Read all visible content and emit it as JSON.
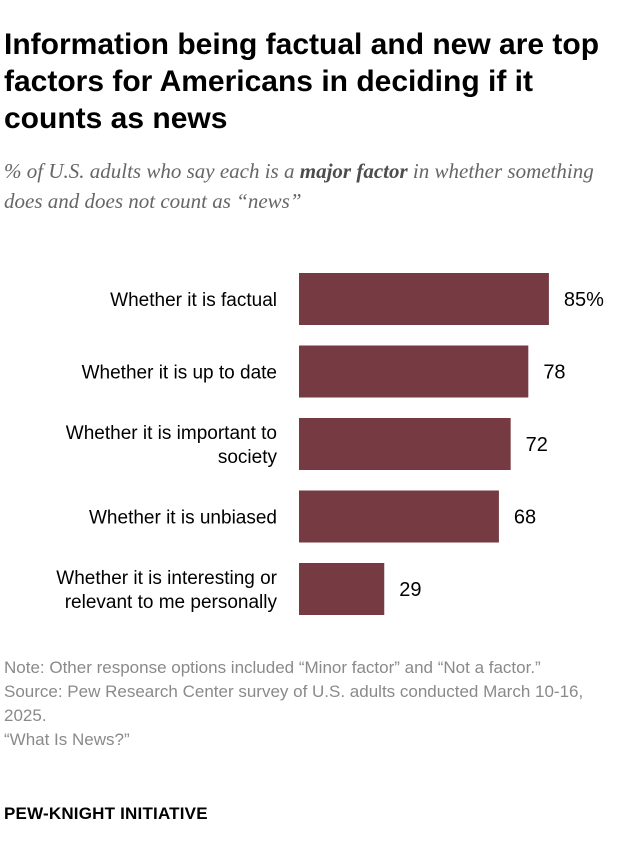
{
  "title": "Information being factual and new are top factors for Americans in deciding if it counts as news",
  "subtitle": {
    "before": "% of U.S. adults who say each is a ",
    "emphasis": "major factor",
    "after": " in whether something does and does not count as “news”"
  },
  "chart_data": {
    "type": "bar",
    "orientation": "horizontal",
    "categories": [
      [
        "Whether it is factual"
      ],
      [
        "Whether it is up to date"
      ],
      [
        "Whether it is important to",
        "society"
      ],
      [
        "Whether it is unbiased"
      ],
      [
        "Whether it is interesting or",
        "relevant to me personally"
      ]
    ],
    "values": [
      85,
      78,
      72,
      68,
      29
    ],
    "value_labels": [
      "85%",
      "78",
      "72",
      "68",
      "29"
    ],
    "bar_color": "#763a42",
    "xlim": [
      0,
      100
    ],
    "grid": false
  },
  "notes": {
    "note": "Note: Other response options included “Minor factor” and “Not a factor.”",
    "source": "Source: Pew Research Center survey of U.S. adults conducted March 10-16, 2025.",
    "report": "“What Is News?”"
  },
  "brand": "PEW-KNIGHT INITIATIVE"
}
